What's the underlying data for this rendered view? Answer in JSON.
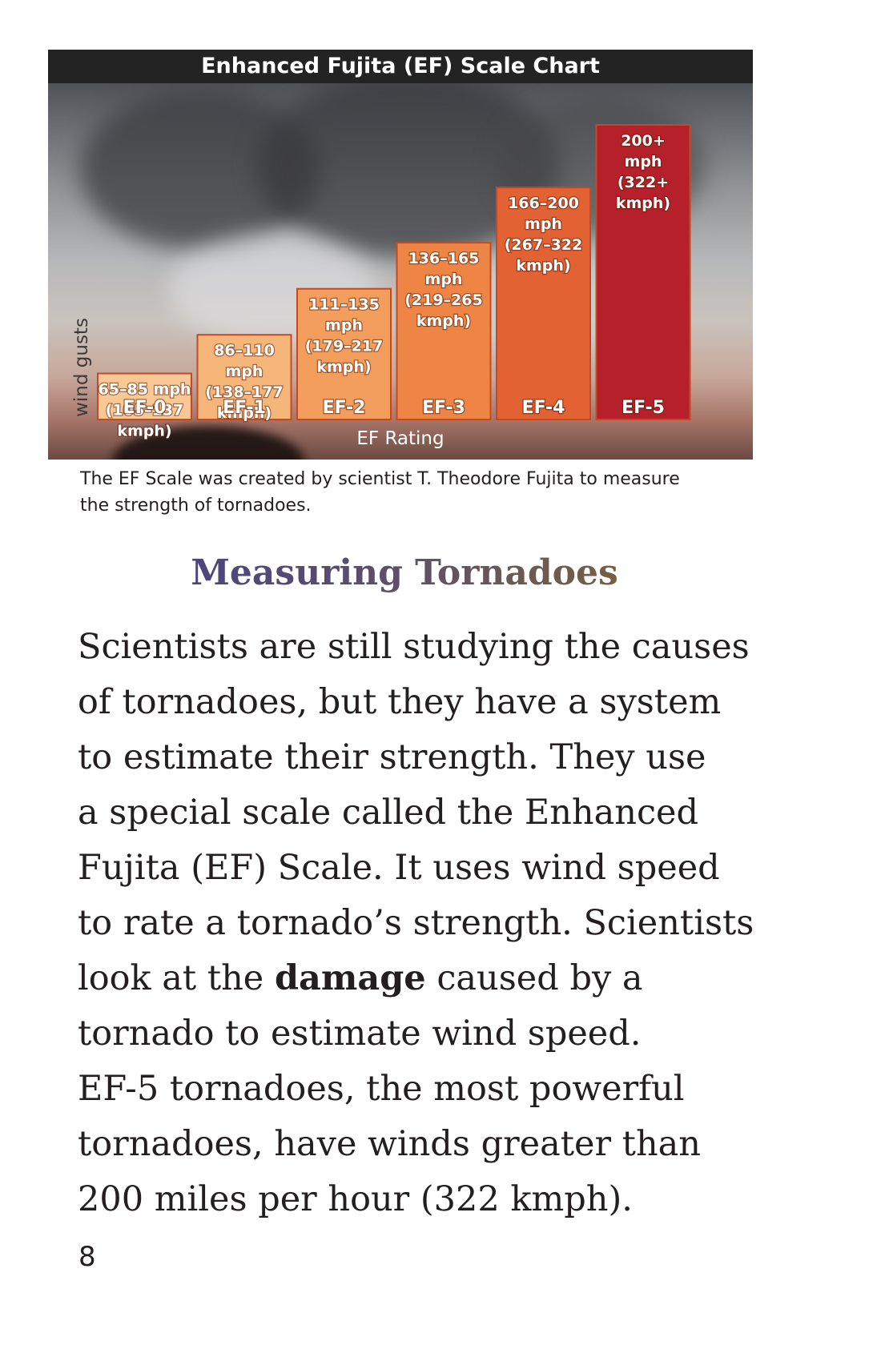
{
  "chart_data": {
    "type": "bar",
    "title": "Enhanced Fujita (EF) Scale Chart",
    "xlabel": "EF Rating",
    "ylabel": "wind gusts",
    "categories": [
      "EF-0",
      "EF-1",
      "EF-2",
      "EF-3",
      "EF-4",
      "EF-5"
    ],
    "range_labels": [
      [
        "65–85 mph",
        "(105–137",
        "kmph)"
      ],
      [
        "86–110",
        "mph",
        "(138–177",
        "kmph)"
      ],
      [
        "111–135",
        "mph",
        "(179–217",
        "kmph)"
      ],
      [
        "136–165",
        "mph",
        "(219–265",
        "kmph)"
      ],
      [
        "166–200",
        "mph",
        "(267–322",
        "kmph)"
      ],
      [
        "200+",
        "mph",
        "(322+",
        "kmph)"
      ]
    ],
    "mph_min": [
      65,
      86,
      111,
      136,
      166,
      200
    ],
    "mph_max": [
      85,
      110,
      135,
      165,
      200,
      null
    ],
    "kmph_min": [
      105,
      138,
      179,
      219,
      267,
      322
    ],
    "kmph_max": [
      137,
      177,
      217,
      265,
      322,
      null
    ],
    "bar_colors": [
      "#f9c894",
      "#f7b679",
      "#f49e5e",
      "#ee8545",
      "#e26234",
      "#b5202b"
    ],
    "grid": false,
    "legend": "none"
  },
  "caption": "The EF Scale was created by scientist T. Theodore Fujita to measure the strength of tornadoes.",
  "heading": "Measuring Tornadoes",
  "body": {
    "lines": [
      "Scientists are still studying the causes",
      "of tornadoes, but they have a system",
      "to estimate their strength. They use",
      "a special scale called the Enhanced",
      "Fujita (EF) Scale. It uses wind speed",
      "to rate a tornado’s strength. Scientists",
      [
        "look at the ",
        "damage",
        " caused by a"
      ],
      "tornado to estimate wind speed.",
      "EF-5 tornadoes, the most powerful",
      "tornadoes, have winds greater than",
      "200 miles per hour (322 kmph)."
    ],
    "bold_word": "damage"
  },
  "page_number": "8"
}
